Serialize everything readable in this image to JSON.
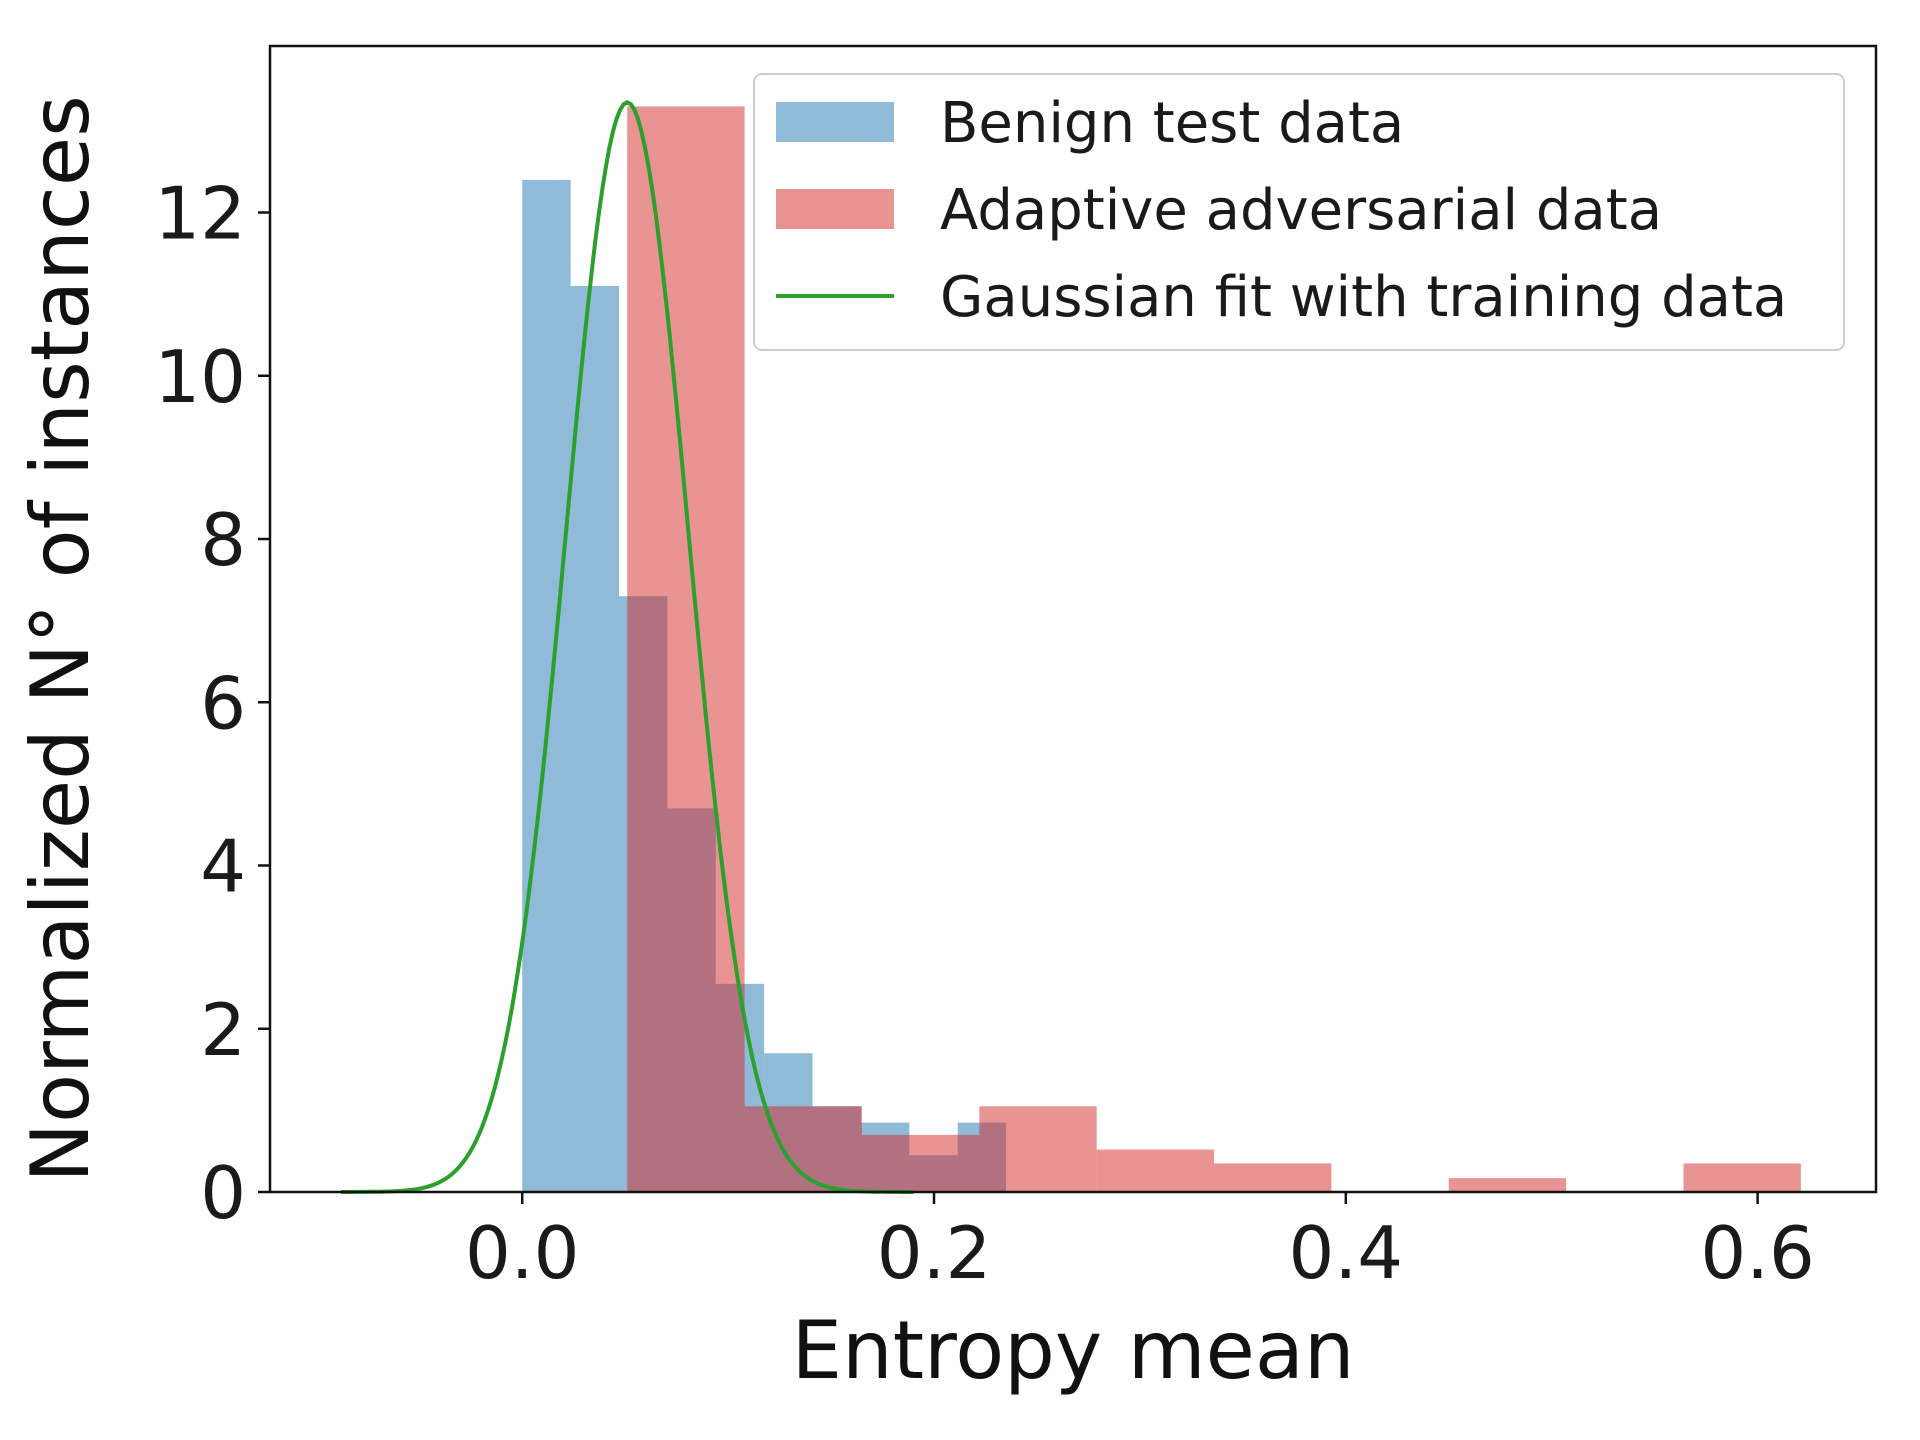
{
  "chart_data": {
    "type": "bar",
    "title": "",
    "xlabel": "Entropy mean",
    "ylabel": "Normalized N° of instances",
    "xlim": [
      -0.1225,
      0.6575
    ],
    "ylim": [
      0,
      14.04
    ],
    "xticks": [
      0.0,
      0.2,
      0.4,
      0.6
    ],
    "xtick_labels": [
      "0.0",
      "0.2",
      "0.4",
      "0.6"
    ],
    "yticks": [
      0,
      2,
      4,
      6,
      8,
      10,
      12
    ],
    "ytick_labels": [
      "0",
      "2",
      "4",
      "6",
      "8",
      "10",
      "12"
    ],
    "grid": false,
    "legend_position": "top-right",
    "series": [
      {
        "name": "Benign test data",
        "kind": "histogram",
        "color": "#1f77b4",
        "opacity": 0.5,
        "bins": [
          [
            0.0,
            0.0235,
            12.4
          ],
          [
            0.0235,
            0.047,
            11.1
          ],
          [
            0.047,
            0.0705,
            7.3
          ],
          [
            0.0705,
            0.094,
            4.7
          ],
          [
            0.094,
            0.1175,
            2.55
          ],
          [
            0.1175,
            0.141,
            1.7
          ],
          [
            0.141,
            0.1645,
            1.05
          ],
          [
            0.1645,
            0.188,
            0.85
          ],
          [
            0.188,
            0.2115,
            0.45
          ],
          [
            0.2115,
            0.235,
            0.85
          ]
        ]
      },
      {
        "name": "Adaptive adversarial data",
        "kind": "histogram",
        "color": "#d62728",
        "opacity": 0.5,
        "bins": [
          [
            0.051,
            0.108,
            13.3
          ],
          [
            0.108,
            0.165,
            1.05
          ],
          [
            0.165,
            0.222,
            0.7
          ],
          [
            0.222,
            0.279,
            1.05
          ],
          [
            0.279,
            0.336,
            0.52
          ],
          [
            0.336,
            0.393,
            0.35
          ],
          [
            0.393,
            0.45,
            0.0
          ],
          [
            0.45,
            0.507,
            0.17
          ],
          [
            0.507,
            0.564,
            0.0
          ],
          [
            0.564,
            0.621,
            0.35
          ]
        ]
      },
      {
        "name": "Gaussian fit with training data",
        "kind": "line",
        "color": "#2ca02c",
        "x_range": [
          -0.088,
          0.19
        ],
        "mu": 0.051,
        "sigma": 0.0297,
        "peak": 13.35
      }
    ]
  }
}
